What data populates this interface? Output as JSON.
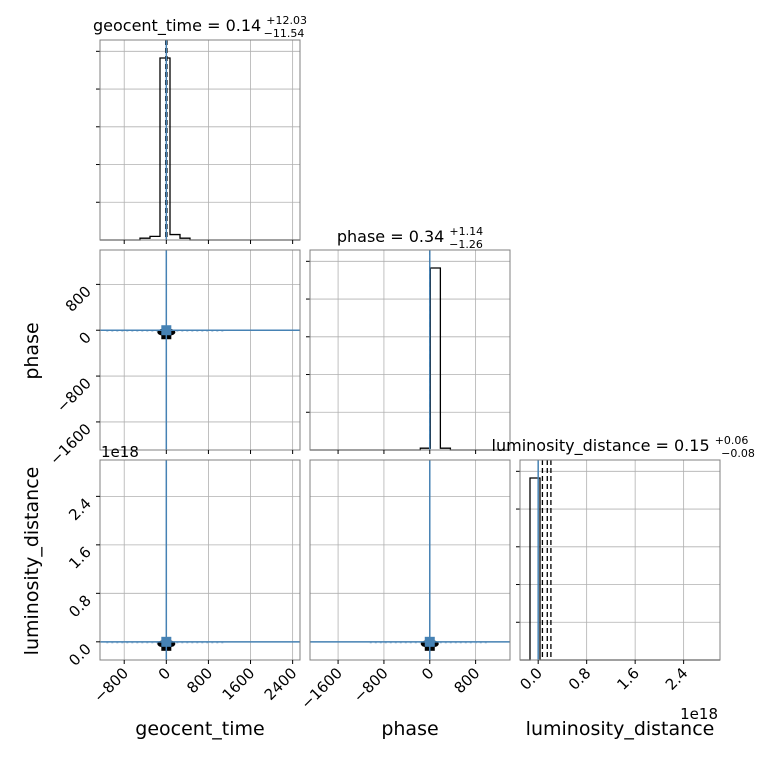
{
  "chart_data": {
    "type": "corner",
    "parameters": [
      "geocent_time",
      "phase",
      "luminosity_distance"
    ],
    "titles": {
      "geocent_time": {
        "name": "geocent_time",
        "median": "0.14",
        "plus": "+12.03",
        "minus": "−11.54"
      },
      "phase": {
        "name": "phase",
        "median": "0.34",
        "plus": "+1.14",
        "minus": "−1.26"
      },
      "luminosity_distance": {
        "name": "luminosity_distance",
        "median": "0.15",
        "plus": "+0.06",
        "minus": "−0.08"
      }
    },
    "axis_labels": {
      "x": [
        "geocent_time",
        "phase",
        "luminosity_distance"
      ],
      "y": [
        "phase",
        "luminosity_distance"
      ]
    },
    "ranges": {
      "geocent_time": [
        -1260,
        2540
      ],
      "phase": [
        -2090,
        1400
      ],
      "luminosity_distance": [
        -3e+17,
        3e+18
      ]
    },
    "ticks": {
      "geocent_time": {
        "values": [
          -800,
          0,
          800,
          1600,
          2400
        ],
        "labels": [
          "−800",
          "0",
          "800",
          "1600",
          "2400"
        ]
      },
      "phase": {
        "values": [
          -1600,
          -800,
          0,
          800
        ],
        "labels": [
          "−1600",
          "−800",
          "0",
          "800"
        ]
      },
      "luminosity_distance": {
        "values": [
          0,
          8e+17,
          1.6e+18,
          2.4e+18
        ],
        "labels": [
          "0.0",
          "0.8",
          "1.6",
          "2.4"
        ],
        "offset": "1e18"
      }
    },
    "truths": {
      "geocent_time": 0,
      "phase": 0,
      "luminosity_distance": 0
    },
    "histograms": {
      "geocent_time": {
        "edges": [
          -1260,
          -1070,
          -880,
          -690,
          -500,
          -310,
          -120,
          70,
          260,
          450,
          640,
          830,
          1020,
          1210,
          1400,
          1590,
          1780,
          1970,
          2160,
          2350,
          2540
        ],
        "heights": [
          0,
          0,
          0,
          0,
          0.01,
          0.02,
          1.0,
          0.03,
          0.01,
          0,
          0,
          0,
          0,
          0,
          0,
          0,
          0,
          0,
          0,
          0
        ]
      },
      "phase": {
        "edges": [
          -2090,
          -1915,
          -1740,
          -1565,
          -1390,
          -1215,
          -1040,
          -865,
          -690,
          -515,
          -340,
          -165,
          10,
          185,
          360,
          535,
          710,
          885,
          1060,
          1235,
          1400
        ],
        "heights": [
          0,
          0,
          0,
          0,
          0,
          0,
          0,
          0,
          0,
          0,
          0,
          0.01,
          1.0,
          0.01,
          0,
          0,
          0,
          0,
          0,
          0
        ]
      },
      "luminosity_distance": {
        "edges": [
          -3e+17,
          -1.35e+17,
          3e+16,
          1.95e+17,
          3.6e+17,
          5.25e+17,
          6.9e+17,
          8.55e+17,
          1.02e+18,
          1.185e+18,
          1.35e+18,
          1.515e+18,
          1.68e+18,
          1.845e+18,
          2.01e+18,
          2.175e+18,
          2.34e+18,
          2.505e+18,
          2.67e+18,
          2.835e+18,
          3e+18
        ],
        "heights": [
          0,
          1.0,
          0,
          0,
          0,
          0,
          0,
          0,
          0,
          0,
          0,
          0,
          0,
          0,
          0,
          0,
          0,
          0,
          0,
          0
        ]
      }
    },
    "quantile_markers": {
      "geocent_time": [
        -11.4,
        0.14,
        12.17
      ],
      "phase": [
        -0.92,
        0.34,
        1.48
      ],
      "luminosity_distance": [
        7e+16,
        1.5e+17,
        2.1e+17
      ]
    },
    "grid": true,
    "colors": {
      "truth": "#4682b4",
      "hist": "#000000",
      "grid": "#b0b0b0",
      "spine": "#808080",
      "point": "#4682b4"
    }
  }
}
